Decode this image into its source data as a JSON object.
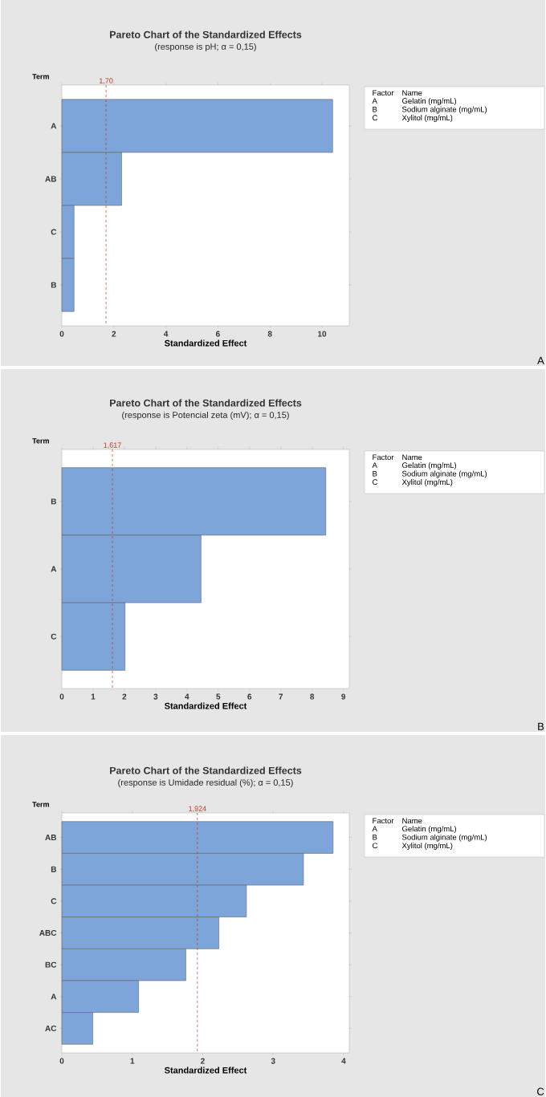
{
  "chart_data": [
    {
      "type": "bar",
      "orientation": "horizontal",
      "title": "Pareto Chart of the Standardized Effects",
      "subtitle": "(response is pH; α = 0,15)",
      "xlabel": "Standardized Effect",
      "ylabel": "Term",
      "categories": [
        "A",
        "AB",
        "C",
        "B"
      ],
      "values": [
        10.41,
        2.3,
        0.47,
        0.47
      ],
      "color": "#7da5d9",
      "xlim": [
        0,
        11.05
      ],
      "xticks": [
        0,
        2,
        4,
        6,
        8,
        10
      ],
      "ref_lines": [
        {
          "axis": "x",
          "value": 1.7,
          "label": "1,70",
          "color": "#c0392b",
          "line_style": "dashed"
        }
      ],
      "annotations": [
        "Factor",
        "Name",
        "A",
        "Gelatin (mg/mL)",
        "B",
        "Sodium alginate (mg/mL)",
        "C",
        "Xylitol (mg/mL)",
        "A"
      ]
    },
    {
      "type": "bar",
      "orientation": "horizontal",
      "title": "Pareto Chart of the Standardized Effects",
      "subtitle": "(response is Potencial zeta (mV); α = 0,15)",
      "xlabel": "Standardized Effect",
      "ylabel": "Term",
      "categories": [
        "B",
        "A",
        "C"
      ],
      "values": [
        8.44,
        4.45,
        2.02
      ],
      "color": "#7da5d9",
      "xlim": [
        0,
        9.19
      ],
      "xticks": [
        0,
        1,
        2,
        3,
        4,
        5,
        6,
        7,
        8,
        9
      ],
      "ref_lines": [
        {
          "axis": "x",
          "value": 1.617,
          "label": "1,617",
          "color": "#c0392b",
          "line_style": "dashed"
        }
      ],
      "annotations": [
        "Factor",
        "Name",
        "A",
        "Gelatin (mg/mL)",
        "B",
        "Sodium alginate (mg/mL)",
        "C",
        "Xylitol (mg/mL)",
        "B"
      ]
    },
    {
      "type": "bar",
      "orientation": "horizontal",
      "title": "Pareto Chart of the Standardized Effects",
      "subtitle": "(response is Umidade residual (%); α = 0,15)",
      "xlabel": "Standardized Effect",
      "ylabel": "Term",
      "categories": [
        "AB",
        "B",
        "C",
        "ABC",
        "BC",
        "A",
        "AC"
      ],
      "values": [
        3.85,
        3.43,
        2.62,
        2.23,
        1.76,
        1.09,
        0.44
      ],
      "color": "#7da5d9",
      "xlim": [
        0,
        4.08
      ],
      "xticks": [
        0,
        1,
        2,
        3,
        4
      ],
      "ref_lines": [
        {
          "axis": "x",
          "value": 1.924,
          "label": "1,924",
          "color": "#c0392b",
          "line_style": "dashed"
        }
      ],
      "annotations": [
        "Factor",
        "Name",
        "A",
        "Gelatin (mg/mL)",
        "B",
        "Sodium alginate (mg/mL)",
        "C",
        "Xylitol (mg/mL)",
        "C"
      ]
    }
  ]
}
